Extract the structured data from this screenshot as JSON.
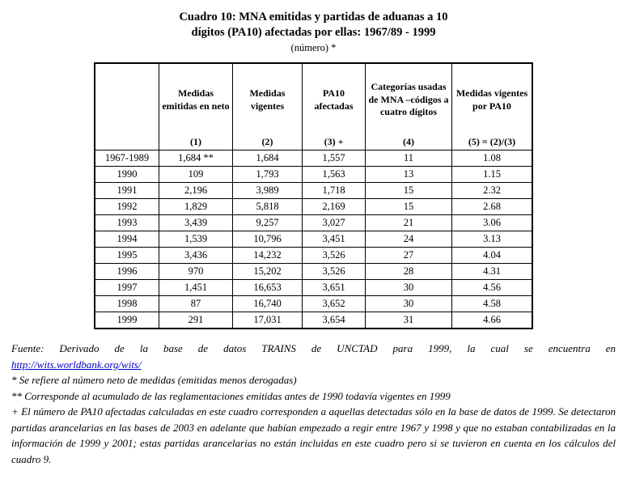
{
  "title": {
    "line1": "Cuadro 10: MNA emitidas y partidas de aduanas a 10",
    "line2": "dígitos (PA10) afectadas por ellas: 1967/89 - 1999",
    "subtitle": "(número) *"
  },
  "chart_data": {
    "type": "table",
    "title": "Cuadro 10: MNA emitidas y partidas de aduanas a 10 dígitos (PA10) afectadas por ellas: 1967/89 - 1999 (número)",
    "columns": [
      "",
      "Medidas emitidas en neto (1)",
      "Medidas vigentes (2)",
      "PA10 afectadas (3) +",
      "Categorías usadas de MNA –códigos a cuatro dígitos (4)",
      "Medidas vigentes por PA10 (5) = (2)/(3)"
    ],
    "rows": [
      [
        "1967-1989",
        "1,684 **",
        "1,684",
        "1,557",
        "11",
        "1.08"
      ],
      [
        "1990",
        "109",
        "1,793",
        "1,563",
        "13",
        "1.15"
      ],
      [
        "1991",
        "2,196",
        "3,989",
        "1,718",
        "15",
        "2.32"
      ],
      [
        "1992",
        "1,829",
        "5,818",
        "2,169",
        "15",
        "2.68"
      ],
      [
        "1993",
        "3,439",
        "9,257",
        "3,027",
        "21",
        "3.06"
      ],
      [
        "1994",
        "1,539",
        "10,796",
        "3,451",
        "24",
        "3.13"
      ],
      [
        "1995",
        "3,436",
        "14,232",
        "3,526",
        "27",
        "4.04"
      ],
      [
        "1996",
        "970",
        "15,202",
        "3,526",
        "28",
        "4.31"
      ],
      [
        "1997",
        "1,451",
        "16,653",
        "3,651",
        "30",
        "4.56"
      ],
      [
        "1998",
        "87",
        "16,740",
        "3,652",
        "30",
        "4.58"
      ],
      [
        "1999",
        "291",
        "17,031",
        "3,654",
        "31",
        "4.66"
      ]
    ]
  },
  "table": {
    "columns": [
      {
        "label": "",
        "num": ""
      },
      {
        "label": "Medidas emitidas en neto",
        "num": "(1)"
      },
      {
        "label": "Medidas vigentes",
        "num": "(2)"
      },
      {
        "label": "PA10 afectadas",
        "num": "(3) +"
      },
      {
        "label": "Categorías usadas de MNA –códigos a cuatro dígitos",
        "num": "(4)"
      },
      {
        "label": "Medidas vigentes por PA10",
        "num": "(5) = (2)/(3)"
      }
    ],
    "rows": [
      [
        "1967-1989",
        "1,684 **",
        "1,684",
        "1,557",
        "11",
        "1.08"
      ],
      [
        "1990",
        "109",
        "1,793",
        "1,563",
        "13",
        "1.15"
      ],
      [
        "1991",
        "2,196",
        "3,989",
        "1,718",
        "15",
        "2.32"
      ],
      [
        "1992",
        "1,829",
        "5,818",
        "2,169",
        "15",
        "2.68"
      ],
      [
        "1993",
        "3,439",
        "9,257",
        "3,027",
        "21",
        "3.06"
      ],
      [
        "1994",
        "1,539",
        "10,796",
        "3,451",
        "24",
        "3.13"
      ],
      [
        "1995",
        "3,436",
        "14,232",
        "3,526",
        "27",
        "4.04"
      ],
      [
        "1996",
        "970",
        "15,202",
        "3,526",
        "28",
        "4.31"
      ],
      [
        "1997",
        "1,451",
        "16,653",
        "3,651",
        "30",
        "4.56"
      ],
      [
        "1998",
        "87",
        "16,740",
        "3,652",
        "30",
        "4.58"
      ],
      [
        "1999",
        "291",
        "17,031",
        "3,654",
        "31",
        "4.66"
      ]
    ]
  },
  "notes": {
    "fuente_text": "Fuente: Derivado de la base de datos TRAINS de UNCTAD para 1999, la cual se encuentra en",
    "fuente_link": "http://wits.worldbank.org/wits/",
    "note_star": "* Se refiere al número neto de medidas (emitidas menos derogadas)",
    "note_double_star": "** Corresponde al acumulado de las reglamentaciones emitidas antes de 1990 todavía vigentes en 1999",
    "note_plus": "+ El número de PA10 afectadas calculadas en este cuadro corresponden a aquellas detectadas sólo en la base de datos de 1999. Se detectaron partidas arancelarias en las bases de 2003 en adelante que habían empezado a regir entre 1967 y 1998 y que no estaban contabilizadas en la información de 1999 y 2001; estas partidas arancelarias no están incluidas en este cuadro pero si se tuvieron en cuenta en los cálculos del cuadro 9."
  },
  "colors": {
    "text": "#000000",
    "link": "#0000cc",
    "background": "#ffffff"
  }
}
